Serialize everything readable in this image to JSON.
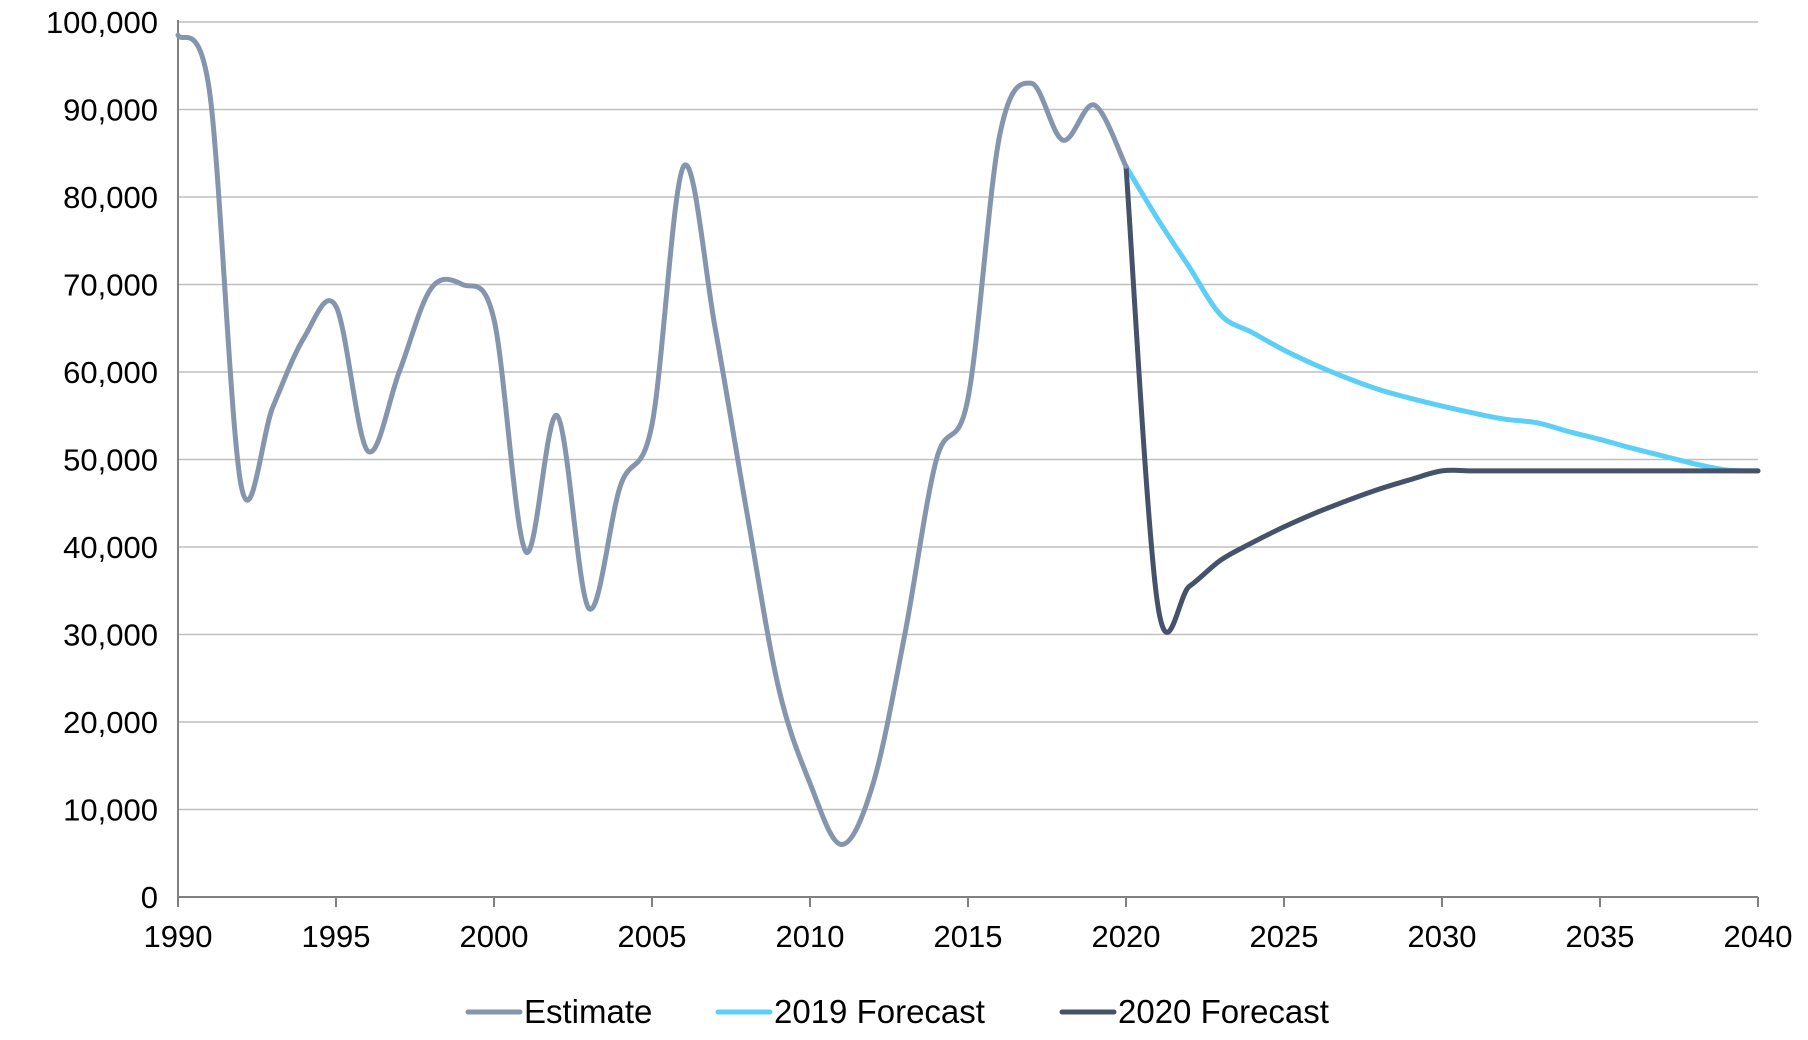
{
  "chart_data": {
    "type": "line",
    "title": "",
    "xlabel": "",
    "ylabel": "",
    "xlim": [
      1990,
      2040
    ],
    "ylim": [
      0,
      100000
    ],
    "x_ticks": [
      1990,
      1995,
      2000,
      2005,
      2010,
      2015,
      2020,
      2025,
      2030,
      2035,
      2040
    ],
    "x_tick_labels": [
      "1990",
      "1995",
      "2000",
      "2005",
      "2010",
      "2015",
      "2020",
      "2025",
      "2030",
      "2035",
      "2040"
    ],
    "y_ticks": [
      0,
      10000,
      20000,
      30000,
      40000,
      50000,
      60000,
      70000,
      80000,
      90000,
      100000
    ],
    "y_tick_labels": [
      "0",
      "10,000",
      "20,000",
      "30,000",
      "40,000",
      "50,000",
      "60,000",
      "70,000",
      "80,000",
      "90,000",
      "100,000"
    ],
    "grid": "horizontal",
    "legend_position": "bottom",
    "series": [
      {
        "name": "Estimate",
        "color": "#8595ad",
        "points": [
          [
            1990,
            98500
          ],
          [
            1991,
            92000
          ],
          [
            1992,
            47000
          ],
          [
            1993,
            56000
          ],
          [
            1994,
            64000
          ],
          [
            1995,
            67500
          ],
          [
            1996,
            51000
          ],
          [
            1997,
            60000
          ],
          [
            1998,
            69500
          ],
          [
            1999,
            70000
          ],
          [
            2000,
            66000
          ],
          [
            2001,
            39500
          ],
          [
            2002,
            55000
          ],
          [
            2003,
            33000
          ],
          [
            2004,
            47000
          ],
          [
            2005,
            54000
          ],
          [
            2006,
            83500
          ],
          [
            2007,
            65000
          ],
          [
            2008,
            44000
          ],
          [
            2009,
            24000
          ],
          [
            2010,
            13000
          ],
          [
            2011,
            6000
          ],
          [
            2012,
            13000
          ],
          [
            2013,
            30000
          ],
          [
            2014,
            50000
          ],
          [
            2015,
            57000
          ],
          [
            2016,
            87000
          ],
          [
            2017,
            93000
          ],
          [
            2018,
            86500
          ],
          [
            2019,
            90500
          ],
          [
            2020,
            83500
          ]
        ]
      },
      {
        "name": "2019 Forecast",
        "color": "#5bcff5",
        "points": [
          [
            2020,
            83500
          ],
          [
            2021,
            77500
          ],
          [
            2022,
            72000
          ],
          [
            2023,
            66500
          ],
          [
            2024,
            64500
          ],
          [
            2025,
            62500
          ],
          [
            2026,
            60800
          ],
          [
            2027,
            59300
          ],
          [
            2028,
            58000
          ],
          [
            2029,
            57000
          ],
          [
            2030,
            56100
          ],
          [
            2031,
            55300
          ],
          [
            2032,
            54600
          ],
          [
            2033,
            54200
          ],
          [
            2034,
            53200
          ],
          [
            2035,
            52300
          ],
          [
            2036,
            51300
          ],
          [
            2037,
            50400
          ],
          [
            2038,
            49500
          ],
          [
            2039,
            48800
          ],
          [
            2040,
            48700
          ]
        ]
      },
      {
        "name": "2020 Forecast",
        "color": "#45526a",
        "points": [
          [
            2020,
            83500
          ],
          [
            2021,
            33500
          ],
          [
            2022,
            35500
          ],
          [
            2023,
            38500
          ],
          [
            2024,
            40500
          ],
          [
            2025,
            42300
          ],
          [
            2026,
            43900
          ],
          [
            2027,
            45300
          ],
          [
            2028,
            46600
          ],
          [
            2029,
            47700
          ],
          [
            2030,
            48700
          ],
          [
            2031,
            48700
          ],
          [
            2032,
            48700
          ],
          [
            2033,
            48700
          ],
          [
            2034,
            48700
          ],
          [
            2035,
            48700
          ],
          [
            2036,
            48700
          ],
          [
            2037,
            48700
          ],
          [
            2038,
            48700
          ],
          [
            2039,
            48700
          ],
          [
            2040,
            48700
          ]
        ]
      }
    ]
  }
}
